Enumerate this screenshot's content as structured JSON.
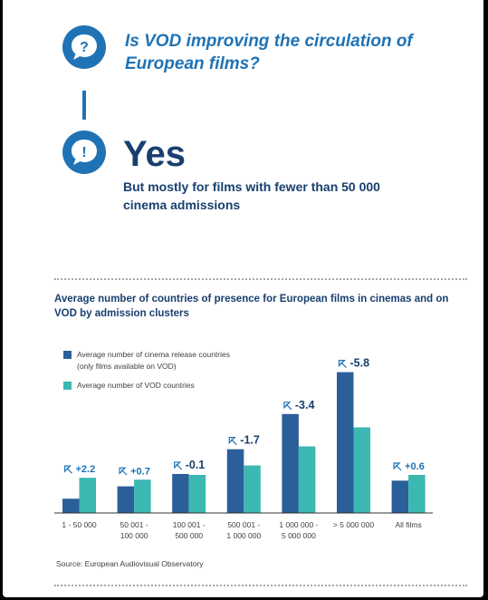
{
  "question": "Is VOD improving the circulation of European films?",
  "answer": "Yes",
  "answer_detail": "But mostly for films with fewer than 50 000 cinema admissions",
  "colors": {
    "primary_blue": "#1f73b5",
    "dark_navy": "#183f6f",
    "cinema_bar": "#2b5f9a",
    "vod_bar": "#3bb8b1"
  },
  "icons": {
    "question": "question-mark-bubble-icon",
    "answer": "exclamation-mark-bubble-icon",
    "difference_arrow": "diagonal-arrow-icon"
  },
  "chart_data": {
    "type": "bar",
    "title": "Average number of countries of presence for European films in cinemas and on VOD by admission clusters",
    "categories": [
      "1 - 50 000",
      "50 001 - 100 000",
      "100 001 - 500 000",
      "500 001 - 1 000 000",
      "1 000 000 - 5 000 000",
      "> 5 000 000",
      "All films"
    ],
    "series": [
      {
        "name": "Average number of cinema release countries (only films available on VOD)",
        "values": [
          1.5,
          2.8,
          4.1,
          6.7,
          10.4,
          14.8,
          3.4
        ]
      },
      {
        "name": "Average number of VOD countries",
        "values": [
          3.7,
          3.5,
          4.0,
          5.0,
          7.0,
          9.0,
          4.0
        ]
      }
    ],
    "annotations": [
      "+2.2",
      "+0.7",
      "-0.1",
      "-1.7",
      "-3.4",
      "-5.8",
      "+0.6"
    ],
    "ylim": [
      0,
      16
    ],
    "grid": false,
    "legend_position": "top-left"
  },
  "source": "Source: European Audiovisual Observatory"
}
